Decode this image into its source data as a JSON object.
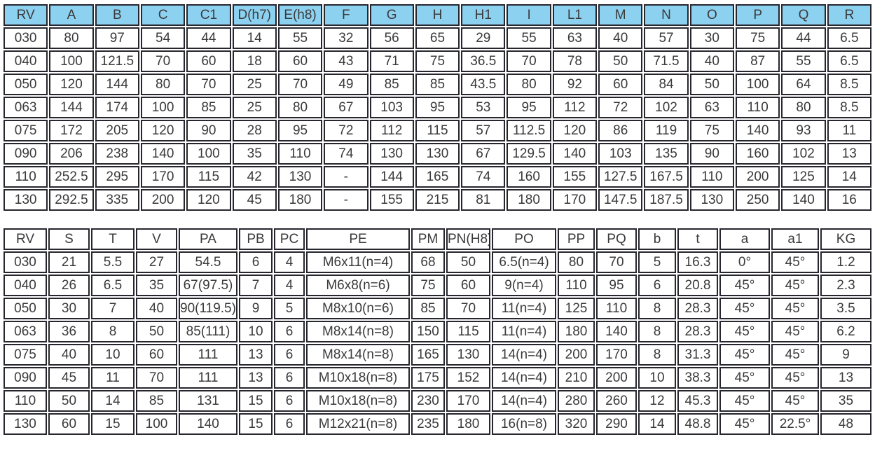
{
  "colors": {
    "header_fill": "#8dd1f0",
    "border": "#26262e",
    "text": "#3a3a3a",
    "page_background": "#ffffff"
  },
  "table1": {
    "headers": [
      "RV",
      "A",
      "B",
      "C",
      "C1",
      "D(h7)",
      "E(h8)",
      "F",
      "G",
      "H",
      "H1",
      "I",
      "L1",
      "M",
      "N",
      "O",
      "P",
      "Q",
      "R"
    ],
    "rows": [
      [
        "030",
        "80",
        "97",
        "54",
        "44",
        "14",
        "55",
        "32",
        "56",
        "65",
        "29",
        "55",
        "63",
        "40",
        "57",
        "30",
        "75",
        "44",
        "6.5"
      ],
      [
        "040",
        "100",
        "121.5",
        "70",
        "60",
        "18",
        "60",
        "43",
        "71",
        "75",
        "36.5",
        "70",
        "78",
        "50",
        "71.5",
        "40",
        "87",
        "55",
        "6.5"
      ],
      [
        "050",
        "120",
        "144",
        "80",
        "70",
        "25",
        "70",
        "49",
        "85",
        "85",
        "43.5",
        "80",
        "92",
        "60",
        "84",
        "50",
        "100",
        "64",
        "8.5"
      ],
      [
        "063",
        "144",
        "174",
        "100",
        "85",
        "25",
        "80",
        "67",
        "103",
        "95",
        "53",
        "95",
        "112",
        "72",
        "102",
        "63",
        "110",
        "80",
        "8.5"
      ],
      [
        "075",
        "172",
        "205",
        "120",
        "90",
        "28",
        "95",
        "72",
        "112",
        "115",
        "57",
        "112.5",
        "120",
        "86",
        "119",
        "75",
        "140",
        "93",
        "11"
      ],
      [
        "090",
        "206",
        "238",
        "140",
        "100",
        "35",
        "110",
        "74",
        "130",
        "130",
        "67",
        "129.5",
        "140",
        "103",
        "135",
        "90",
        "160",
        "102",
        "13"
      ],
      [
        "110",
        "252.5",
        "295",
        "170",
        "115",
        "42",
        "130",
        "-",
        "144",
        "165",
        "74",
        "160",
        "155",
        "127.5",
        "167.5",
        "110",
        "200",
        "125",
        "14"
      ],
      [
        "130",
        "292.5",
        "335",
        "200",
        "120",
        "45",
        "180",
        "-",
        "155",
        "215",
        "81",
        "180",
        "170",
        "147.5",
        "187.5",
        "130",
        "250",
        "140",
        "16"
      ]
    ]
  },
  "table2": {
    "headers": [
      "RV",
      "S",
      "T",
      "V",
      "PA",
      "PB",
      "PC",
      "PE",
      "PM",
      "PN(H8)",
      "PO",
      "PP",
      "PQ",
      "b",
      "t",
      "a",
      "a1",
      "KG"
    ],
    "rows": [
      [
        "030",
        "21",
        "5.5",
        "27",
        "54.5",
        "6",
        "4",
        "M6x11(n=4)",
        "68",
        "50",
        "6.5(n=4)",
        "80",
        "70",
        "5",
        "16.3",
        "0°",
        "45°",
        "1.2"
      ],
      [
        "040",
        "26",
        "6.5",
        "35",
        "67(97.5)",
        "7",
        "4",
        "M6x8(n=6)",
        "75",
        "60",
        "9(n=4)",
        "110",
        "95",
        "6",
        "20.8",
        "45°",
        "45°",
        "2.3"
      ],
      [
        "050",
        "30",
        "7",
        "40",
        "90(119.5)",
        "9",
        "5",
        "M8x10(n=6)",
        "85",
        "70",
        "11(n=4)",
        "125",
        "110",
        "8",
        "28.3",
        "45°",
        "45°",
        "3.5"
      ],
      [
        "063",
        "36",
        "8",
        "50",
        "85(111)",
        "10",
        "6",
        "M8x14(n=8)",
        "150",
        "115",
        "11(n=4)",
        "180",
        "140",
        "8",
        "28.3",
        "45°",
        "45°",
        "6.2"
      ],
      [
        "075",
        "40",
        "10",
        "60",
        "111",
        "13",
        "6",
        "M8x14(n=8)",
        "165",
        "130",
        "14(n=4)",
        "200",
        "170",
        "8",
        "31.3",
        "45°",
        "45°",
        "9"
      ],
      [
        "090",
        "45",
        "11",
        "70",
        "111",
        "13",
        "6",
        "M10x18(n=8)",
        "175",
        "152",
        "14(n=4)",
        "210",
        "200",
        "10",
        "38.3",
        "45°",
        "45°",
        "13"
      ],
      [
        "110",
        "50",
        "14",
        "85",
        "131",
        "15",
        "6",
        "M10x18(n=8)",
        "230",
        "170",
        "14(n=4)",
        "280",
        "260",
        "12",
        "45.3",
        "45°",
        "45°",
        "35"
      ],
      [
        "130",
        "60",
        "15",
        "100",
        "140",
        "15",
        "6",
        "M12x21(n=8)",
        "235",
        "180",
        "16(n=8)",
        "320",
        "290",
        "14",
        "48.8",
        "45°",
        "22.5°",
        "48"
      ]
    ]
  }
}
